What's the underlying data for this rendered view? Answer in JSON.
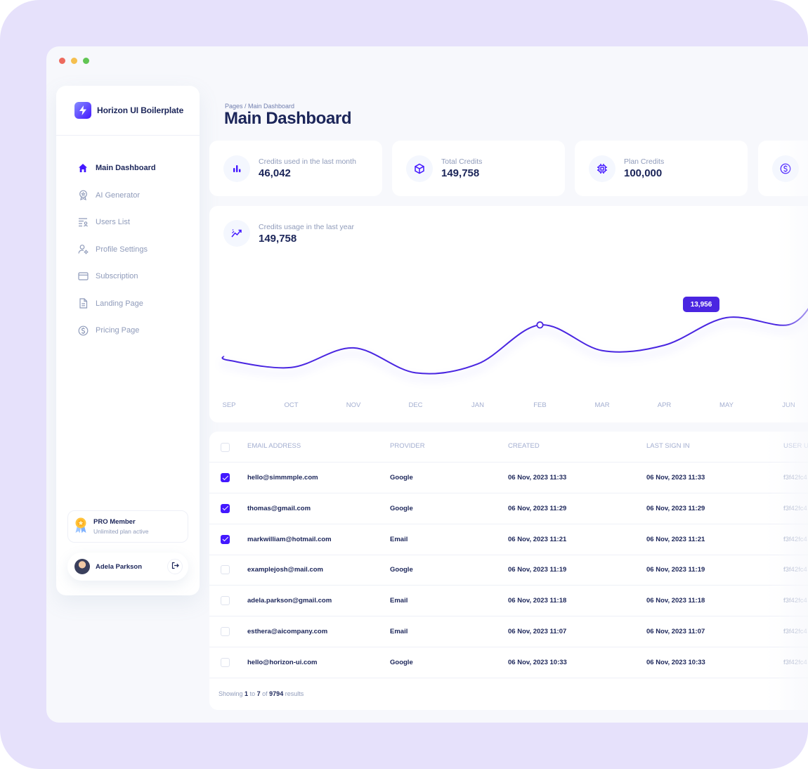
{
  "app": {
    "brand": "Horizon UI Boilerplate"
  },
  "window": {
    "dot_colors": [
      "#ed6a5e",
      "#f5bf4f",
      "#61c554"
    ]
  },
  "sidebar": {
    "items": [
      {
        "label": "Main Dashboard",
        "icon": "home-icon",
        "active": true
      },
      {
        "label": "AI Generator",
        "icon": "ai-badge-icon",
        "active": false
      },
      {
        "label": "Users List",
        "icon": "users-list-icon",
        "active": false
      },
      {
        "label": "Profile Settings",
        "icon": "profile-settings-icon",
        "active": false
      },
      {
        "label": "Subscription",
        "icon": "credit-card-icon",
        "active": false
      },
      {
        "label": "Landing Page",
        "icon": "document-icon",
        "active": false
      },
      {
        "label": "Pricing Page",
        "icon": "dollar-circle-icon",
        "active": false
      }
    ],
    "pro_card": {
      "title": "PRO Member",
      "subtitle": "Unlimited plan active",
      "icon": "award-ribbon-icon"
    },
    "user": {
      "name": "Adela Parkson",
      "logout_icon": "logout-icon"
    }
  },
  "header": {
    "breadcrumb": "Pages / Main Dashboard",
    "title": "Main Dashboard"
  },
  "stats": [
    {
      "label": "Credits used in the last month",
      "value": "46,042",
      "icon": "bar-chart-icon"
    },
    {
      "label": "Total Credits",
      "value": "149,758",
      "icon": "cube-icon"
    },
    {
      "label": "Plan Credits",
      "value": "100,000",
      "icon": "chip-icon"
    },
    {
      "label": "",
      "value": "",
      "icon": "dollar-circle-icon"
    }
  ],
  "chart": {
    "label": "Credits usage in the last year",
    "value": "149,758",
    "icon": "trend-icon",
    "tooltip": "13,956"
  },
  "chart_data": {
    "type": "line",
    "categories": [
      "SEP",
      "OCT",
      "NOV",
      "DEC",
      "JAN",
      "FEB",
      "MAR",
      "APR",
      "MAY",
      "JUN"
    ],
    "series": [
      {
        "values": [
          6000,
          4400,
          8800,
          3200,
          5200,
          13956,
          8200,
          9400,
          15600,
          14000
        ]
      }
    ],
    "highlight_category": "FEB",
    "line_color": "#4a25e1",
    "grid": false,
    "yaxis_visible": false
  },
  "table": {
    "columns": [
      "EMAIL ADDRESS",
      "PROVIDER",
      "CREATED",
      "LAST SIGN IN",
      "USER UI"
    ],
    "rows": [
      {
        "checked": true,
        "email": "hello@simmmple.com",
        "provider": "Google",
        "created": "06 Nov, 2023 11:33",
        "last_sign_in": "06 Nov, 2023 11:33",
        "uid": "f3f42fc4"
      },
      {
        "checked": true,
        "email": "thomas@gmail.com",
        "provider": "Google",
        "created": "06 Nov, 2023 11:29",
        "last_sign_in": "06 Nov, 2023 11:29",
        "uid": "f3f42fc4"
      },
      {
        "checked": true,
        "email": "markwilliam@hotmail.com",
        "provider": "Email",
        "created": "06 Nov, 2023 11:21",
        "last_sign_in": "06 Nov, 2023 11:21",
        "uid": "f3f42fc4"
      },
      {
        "checked": false,
        "email": "examplejosh@mail.com",
        "provider": "Google",
        "created": "06 Nov, 2023 11:19",
        "last_sign_in": "06 Nov, 2023 11:19",
        "uid": "f3f42fc4"
      },
      {
        "checked": false,
        "email": "adela.parkson@gmail.com",
        "provider": "Email",
        "created": "06 Nov, 2023 11:18",
        "last_sign_in": "06 Nov, 2023 11:18",
        "uid": "f3f42fc4"
      },
      {
        "checked": false,
        "email": "esthera@aicompany.com",
        "provider": "Email",
        "created": "06 Nov, 2023 11:07",
        "last_sign_in": "06 Nov, 2023 11:07",
        "uid": "f3f42fc4"
      },
      {
        "checked": false,
        "email": "hello@horizon-ui.com",
        "provider": "Google",
        "created": "06 Nov, 2023 10:33",
        "last_sign_in": "06 Nov, 2023 10:33",
        "uid": "f3f42fc4"
      }
    ],
    "footer": {
      "prefix": "Showing",
      "from": "1",
      "to_word": "to",
      "to": "7",
      "of_word": "of",
      "total": "9794",
      "suffix": "results"
    }
  }
}
